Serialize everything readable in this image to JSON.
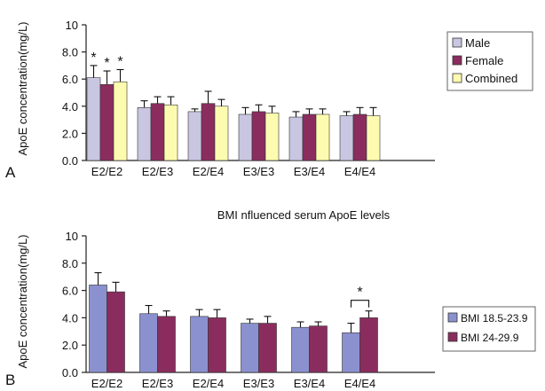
{
  "panels": [
    {
      "panel_label": "A",
      "legend_position": "right",
      "chart_data": {
        "type": "bar",
        "title": "",
        "xlabel": "",
        "ylabel": "ApoE concentration(mg/L)",
        "ylim": [
          0,
          10
        ],
        "yticks": [
          "0.0",
          "2.0",
          "4.0",
          "6.0",
          "8.0",
          "10"
        ],
        "categories": [
          "E2/E2",
          "E2/E3",
          "E2/E4",
          "E3/E3",
          "E3/E4",
          "E4/E4"
        ],
        "series": [
          {
            "name": "Male",
            "color": "#c9c6e2",
            "values": [
              6.1,
              3.9,
              3.6,
              3.4,
              3.2,
              3.3
            ],
            "errors": [
              0.9,
              0.5,
              0.2,
              0.5,
              0.4,
              0.3
            ]
          },
          {
            "name": "Female",
            "color": "#8a2d5e",
            "values": [
              5.6,
              4.2,
              4.2,
              3.6,
              3.4,
              3.4
            ],
            "errors": [
              1.0,
              0.5,
              0.9,
              0.5,
              0.4,
              0.5
            ]
          },
          {
            "name": "Combined",
            "color": "#fdfbb0",
            "values": [
              5.8,
              4.1,
              4.0,
              3.5,
              3.4,
              3.3
            ],
            "errors": [
              0.9,
              0.6,
              0.5,
              0.5,
              0.4,
              0.6
            ]
          }
        ],
        "annotations": [
          {
            "text": "*",
            "category": "E2/E2",
            "series": "Male"
          },
          {
            "text": "*",
            "category": "E2/E2",
            "series": "Female"
          },
          {
            "text": "*",
            "category": "E2/E2",
            "series": "Combined"
          }
        ]
      }
    },
    {
      "panel_label": "B",
      "legend_position": "right",
      "chart_data": {
        "type": "bar",
        "title": "BMI nfluenced serum ApoE levels",
        "xlabel": "",
        "ylabel": "ApoE concentration(mg/L)",
        "ylim": [
          0,
          10
        ],
        "yticks": [
          "0.0",
          "2.0",
          "4.0",
          "6.0",
          "8.0",
          "10"
        ],
        "categories": [
          "E2/E2",
          "E2/E3",
          "E2/E4",
          "E3/E3",
          "E3/E4",
          "E4/E4"
        ],
        "series": [
          {
            "name": "BMI 18.5-23.9",
            "color": "#8b91cf",
            "values": [
              6.4,
              4.3,
              4.1,
              3.6,
              3.3,
              2.9
            ],
            "errors": [
              0.9,
              0.6,
              0.5,
              0.3,
              0.4,
              0.7
            ]
          },
          {
            "name": "BMI 24-29.9",
            "color": "#8a2d5e",
            "values": [
              5.9,
              4.1,
              4.0,
              3.6,
              3.4,
              4.0
            ],
            "errors": [
              0.7,
              0.4,
              0.6,
              0.5,
              0.3,
              0.5
            ]
          }
        ],
        "annotations": [
          {
            "text": "*",
            "category": "E4/E4",
            "type": "bracket"
          }
        ]
      }
    }
  ]
}
